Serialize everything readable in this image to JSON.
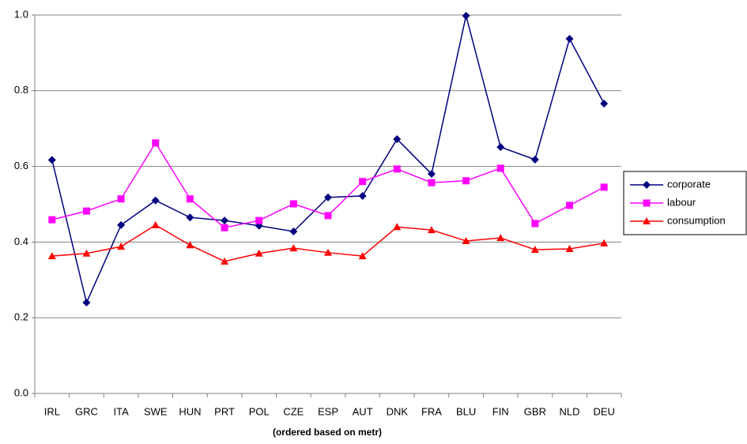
{
  "chart_data": {
    "type": "line",
    "x_label": "(ordered based on metr)",
    "categories": [
      "IRL",
      "GRC",
      "ITA",
      "SWE",
      "HUN",
      "PRT",
      "POL",
      "CZE",
      "ESP",
      "AUT",
      "DNK",
      "FRA",
      "BLU",
      "FIN",
      "GBR",
      "NLD",
      "DEU"
    ],
    "series": [
      {
        "name": "corporate",
        "color": "#000080",
        "marker": "diamond",
        "values": [
          0.617,
          0.24,
          0.445,
          0.51,
          0.465,
          0.457,
          0.443,
          0.428,
          0.518,
          0.522,
          0.672,
          0.58,
          0.998,
          0.651,
          0.618,
          0.937,
          0.766
        ]
      },
      {
        "name": "labour",
        "color": "#ff00ff",
        "marker": "square",
        "values": [
          0.459,
          0.482,
          0.514,
          0.662,
          0.514,
          0.438,
          0.457,
          0.501,
          0.47,
          0.56,
          0.593,
          0.557,
          0.562,
          0.595,
          0.449,
          0.497,
          0.545
        ]
      },
      {
        "name": "consumption",
        "color": "#ff0000",
        "marker": "triangle",
        "values": [
          0.363,
          0.37,
          0.388,
          0.445,
          0.392,
          0.349,
          0.37,
          0.384,
          0.372,
          0.363,
          0.44,
          0.432,
          0.403,
          0.411,
          0.38,
          0.382,
          0.397
        ]
      }
    ],
    "ylim": [
      0,
      1
    ],
    "yticks": [
      {
        "value": 0,
        "label": "0.0"
      },
      0.2,
      0.4,
      0.6,
      0.8,
      {
        "value": 1,
        "label": "1.0"
      }
    ],
    "grid": true,
    "legend": "right"
  }
}
